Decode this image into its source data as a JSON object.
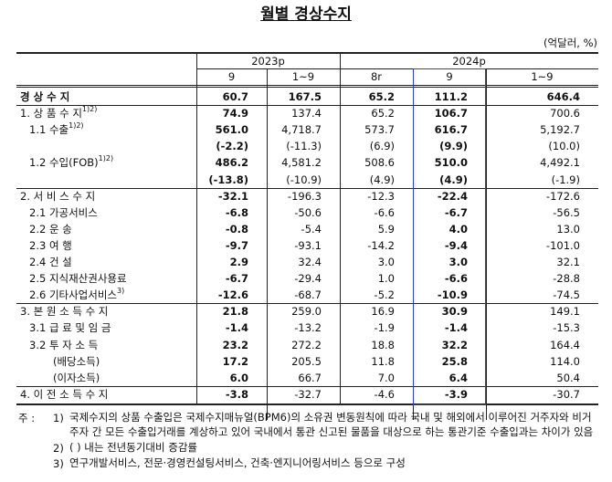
{
  "title": "월별 경상수지",
  "unit": "(억달러, %)",
  "table": {
    "header": {
      "groups": [
        "2023p",
        "2024p"
      ],
      "columns": [
        "9",
        "1~9",
        "8r",
        "9",
        "1~9"
      ]
    },
    "sections": [
      {
        "rows": [
          {
            "label": "경 상 수 지",
            "values": [
              "60.7",
              "167.5",
              "65.2",
              "111.2",
              "646.4"
            ]
          }
        ]
      },
      {
        "rows": [
          {
            "label": "1. 상 품 수 지",
            "sup": "1)2)",
            "values": [
              "74.9",
              "137.4",
              "65.2",
              "106.7",
              "700.6"
            ]
          },
          {
            "label": "1.1 수출",
            "sup": "1)2)",
            "values": [
              "561.0",
              "4,718.7",
              "573.7",
              "616.7",
              "5,192.7"
            ]
          },
          {
            "values": [
              "(-2.2)",
              "(-11.3)",
              "(6.9)",
              "(9.9)",
              "(10.0)"
            ]
          },
          {
            "label": "1.2 수입(FOB)",
            "sup": "1)2)",
            "values": [
              "486.2",
              "4,581.2",
              "508.6",
              "510.0",
              "4,492.1"
            ]
          },
          {
            "values": [
              "(-13.8)",
              "(-10.9)",
              "(4.9)",
              "(4.9)",
              "(-1.9)"
            ]
          }
        ]
      },
      {
        "rows": [
          {
            "label": "2. 서 비 스 수 지",
            "values": [
              "-32.1",
              "-196.3",
              "-12.3",
              "-22.4",
              "-172.6"
            ]
          },
          {
            "label": "2.1 가공서비스",
            "values": [
              "-6.8",
              "-50.6",
              "-6.6",
              "-6.7",
              "-56.5"
            ]
          },
          {
            "label": "2.2 운 송",
            "values": [
              "-0.8",
              "-5.4",
              "5.9",
              "4.0",
              "13.0"
            ]
          },
          {
            "label": "2.3 여 행",
            "values": [
              "-9.7",
              "-93.1",
              "-14.2",
              "-9.4",
              "-101.0"
            ]
          },
          {
            "label": "2.4 건 설",
            "values": [
              "2.9",
              "32.4",
              "3.0",
              "3.0",
              "32.1"
            ]
          },
          {
            "label": "2.5 지식재산권사용료",
            "values": [
              "-6.7",
              "-29.4",
              "1.0",
              "-6.6",
              "-28.8"
            ]
          },
          {
            "label": "2.6 기타사업서비스",
            "sup": "3)",
            "values": [
              "-12.6",
              "-68.7",
              "-5.2",
              "-10.9",
              "-74.5"
            ]
          }
        ]
      },
      {
        "rows": [
          {
            "label": "3. 본 원 소 득 수 지",
            "values": [
              "21.8",
              "259.0",
              "16.9",
              "30.9",
              "149.1"
            ]
          },
          {
            "label": "3.1 급 료 및 임 금",
            "values": [
              "-1.4",
              "-13.2",
              "-1.9",
              "-1.4",
              "-15.3"
            ]
          },
          {
            "label": "3.2 투 자 소 득",
            "values": [
              "23.2",
              "272.2",
              "18.8",
              "32.2",
              "164.4"
            ]
          },
          {
            "label": "(배당소득)",
            "values": [
              "17.2",
              "205.5",
              "11.8",
              "25.8",
              "114.0"
            ]
          },
          {
            "label": "(이자소득)",
            "values": [
              "6.0",
              "66.7",
              "7.0",
              "6.4",
              "50.4"
            ]
          }
        ]
      },
      {
        "rows": [
          {
            "label": "4. 이 전 소 득 수 지",
            "values": [
              "-3.8",
              "-32.7",
              "-4.6",
              "-3.9",
              "-30.7"
            ]
          }
        ]
      }
    ]
  },
  "notes": {
    "label": "주 :",
    "items": [
      {
        "marker": "1)",
        "text": "국제수지의 상품 수출입은 국제수지매뉴얼(BPM6)의 소유권 변동원칙에 따라 국내 및 해외에서 이루어진 거주자와 비거주자 간 모든 수출입거래를 계상하고 있어 국내에서 통관 신고된 물품을 대상으로 하는 통관기준 수출입과는 차이가 있음"
      },
      {
        "marker": "2)",
        "text": "( ) 내는 전년동기대비 증감률"
      },
      {
        "marker": "3)",
        "text": "연구개발서비스, 전문·경영컨설팅서비스, 건축·엔지니어링서비스 등으로 구성"
      }
    ]
  }
}
